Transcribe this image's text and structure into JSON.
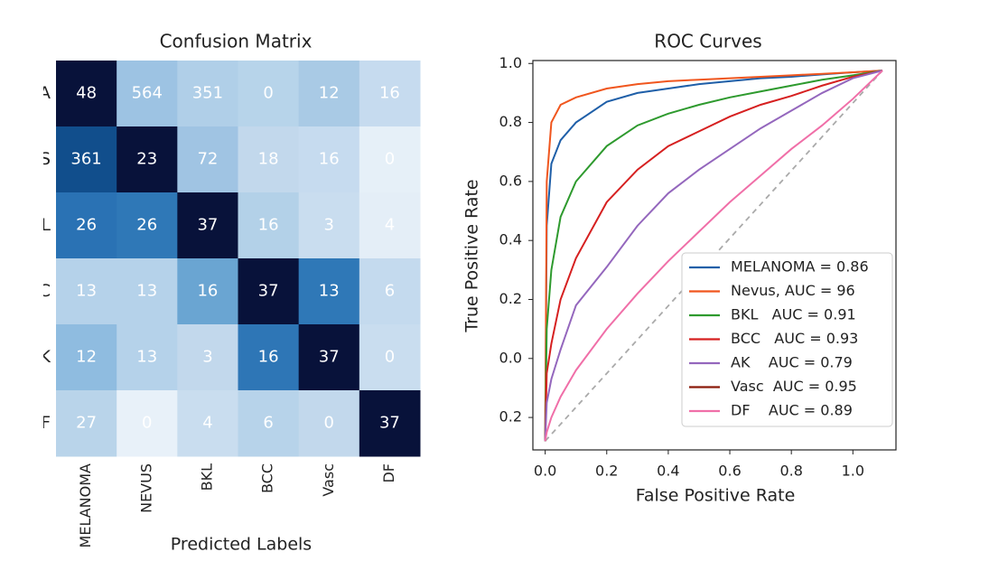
{
  "chart_data": [
    {
      "type": "heatmap",
      "title": "Confusion Matrix",
      "xlabel": "Predicted Labels",
      "x_categories": [
        "MELANOMA",
        "NEVUS",
        "BKL",
        "BCC",
        "Vasc",
        "DF"
      ],
      "y_categories": [
        "A",
        "S",
        "L",
        "C",
        "K",
        "F"
      ],
      "values": [
        [
          48,
          564,
          351,
          0,
          12,
          16
        ],
        [
          361,
          23,
          72,
          18,
          16,
          0
        ],
        [
          26,
          26,
          37,
          16,
          3,
          4
        ],
        [
          13,
          13,
          16,
          37,
          13,
          6
        ],
        [
          12,
          13,
          3,
          16,
          37,
          0
        ],
        [
          27,
          0,
          4,
          6,
          0,
          37
        ]
      ],
      "colors": [
        [
          "#08123a",
          "#9dc3e3",
          "#b0cfe8",
          "#b7d4ea",
          "#a9cae5",
          "#c6dbef"
        ],
        [
          "#114e8c",
          "#08123a",
          "#a0c4e3",
          "#c2d8ec",
          "#c6dbef",
          "#e6f0f8"
        ],
        [
          "#2a72b4",
          "#2f78b7",
          "#08123a",
          "#b3d1e8",
          "#c9ddef",
          "#e4eef7"
        ],
        [
          "#b5d2ea",
          "#b5d2ea",
          "#6aa5d2",
          "#08123a",
          "#2f78b7",
          "#c4daee"
        ],
        [
          "#8fbce0",
          "#b5d2ea",
          "#c2d8ec",
          "#2e76b6",
          "#08123a",
          "#c9ddef"
        ],
        [
          "#b9d4ea",
          "#e8f1f9",
          "#c9ddef",
          "#b7d3ea",
          "#c2d8ec",
          "#08123a"
        ]
      ]
    },
    {
      "type": "line",
      "title": "ROC Curves",
      "xlabel": "False Positive Rate",
      "ylabel": "True Positive Rate",
      "x": [
        0,
        0.005,
        0.02,
        0.05,
        0.1,
        0.2,
        0.3,
        0.4,
        0.5,
        0.6,
        0.7,
        0.8,
        0.9,
        1.0,
        1.096
      ],
      "series": [
        {
          "name": "MELANOMA = 0.86",
          "color": "#1f5fa8",
          "values": [
            -0.28,
            0.45,
            0.66,
            0.74,
            0.8,
            0.87,
            0.9,
            0.915,
            0.93,
            0.94,
            0.95,
            0.955,
            0.963,
            0.97,
            0.976
          ]
        },
        {
          "name": "Nevus, AUC = 96",
          "color": "#f0561e",
          "values": [
            -0.28,
            0.6,
            0.8,
            0.86,
            0.885,
            0.915,
            0.93,
            0.94,
            0.945,
            0.95,
            0.955,
            0.96,
            0.965,
            0.97,
            0.976
          ]
        },
        {
          "name": "BKL   AUC = 0.91",
          "color": "#2e9a2e",
          "values": [
            -0.28,
            0.1,
            0.3,
            0.48,
            0.6,
            0.72,
            0.79,
            0.83,
            0.86,
            0.885,
            0.905,
            0.925,
            0.945,
            0.96,
            0.976
          ]
        },
        {
          "name": "BCC   AUC = 0.93",
          "color": "#d62020",
          "values": [
            -0.28,
            -0.05,
            0.05,
            0.2,
            0.34,
            0.53,
            0.64,
            0.72,
            0.77,
            0.82,
            0.86,
            0.89,
            0.925,
            0.955,
            0.976
          ]
        },
        {
          "name": "AK    AUC = 0.79",
          "color": "#9467bd",
          "values": [
            -0.28,
            -0.15,
            -0.07,
            0.03,
            0.18,
            0.31,
            0.45,
            0.56,
            0.64,
            0.71,
            0.78,
            0.84,
            0.9,
            0.95,
            0.976
          ]
        },
        {
          "name": "Vasc  AUC = 0.95",
          "color": "#8b1a0a",
          "values": [
            null,
            null,
            null,
            null,
            null,
            null,
            null,
            null,
            null,
            null,
            null,
            null,
            null,
            null,
            null
          ]
        },
        {
          "name": "DF    AUC = 0.89",
          "color": "#f06fa8",
          "values": [
            -0.28,
            -0.25,
            -0.2,
            -0.13,
            -0.04,
            0.1,
            0.22,
            0.33,
            0.43,
            0.53,
            0.62,
            0.71,
            0.79,
            0.88,
            0.976
          ]
        }
      ],
      "reference_line": {
        "x": [
          0,
          1.096
        ],
        "values": [
          -0.28,
          0.976
        ],
        "color": "#aaaaaa"
      },
      "xlim": [
        -0.04,
        1.14
      ],
      "ylim": [
        -0.31,
        1.01
      ],
      "xticks": [
        {
          "value": 0,
          "label": "0.0"
        },
        0.2,
        0.4,
        0.6,
        0.8,
        {
          "value": 1,
          "label": "1.0"
        }
      ],
      "yticks": [
        {
          "value": 1,
          "label": "1.0"
        },
        0.8,
        0.6,
        0.4,
        0.2,
        {
          "value": 0,
          "label": "0.0"
        },
        {
          "value": -0.2,
          "label": "0.2"
        }
      ],
      "legend": "lower right"
    }
  ]
}
